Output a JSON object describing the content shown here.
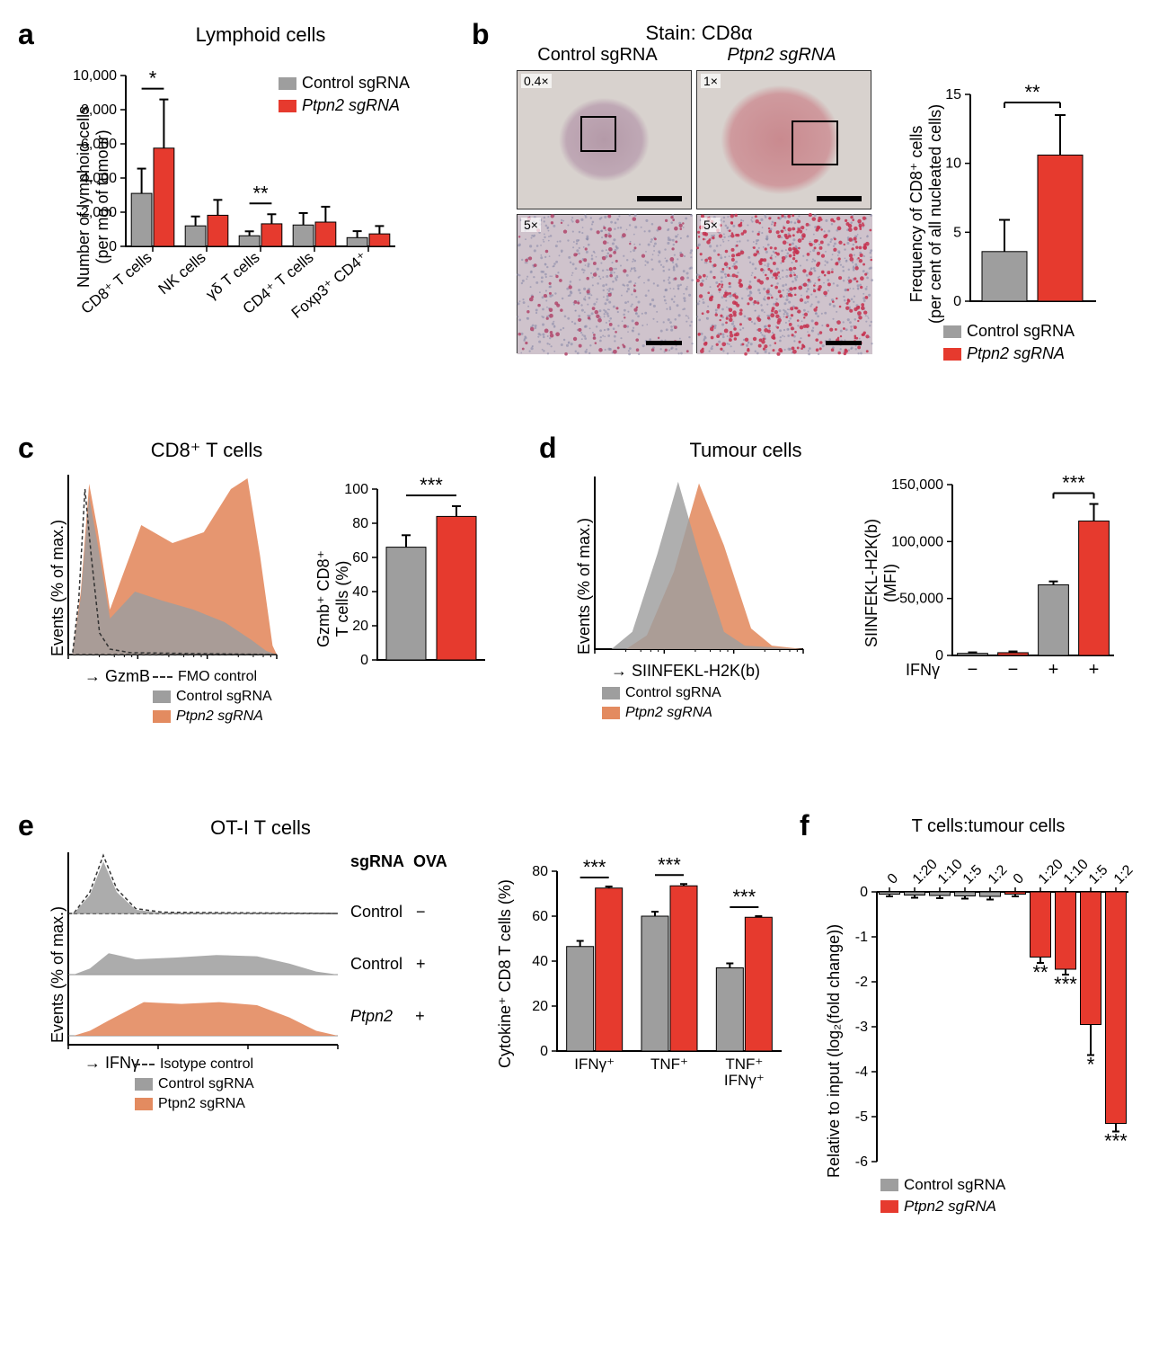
{
  "colors": {
    "control": "#9e9e9e",
    "ptpn2": "#e63a2e",
    "ptpn2_fill": "#e38b60",
    "fmo": "#555555",
    "axis": "#000000",
    "background": "#ffffff",
    "histo_bg": "#d8d2ce",
    "scale_bar": "#000000"
  },
  "panel_a": {
    "label": "a",
    "title": "Lymphoid cells",
    "y_axis": "Number of lymphoid cells\n(per mg of tumour)",
    "y_max": 10000,
    "y_tick_step": 2000,
    "categories": [
      "CD8⁺ T cells",
      "NK cells",
      "γδ T cells",
      "CD4⁺ T cells",
      "Foxp3⁺ CD4⁺"
    ],
    "control": {
      "values": [
        3100,
        1200,
        620,
        1250,
        510
      ],
      "errs": [
        1450,
        550,
        260,
        700,
        380
      ]
    },
    "ptpn2": {
      "values": [
        5750,
        1820,
        1320,
        1420,
        730
      ],
      "errs": [
        2850,
        900,
        560,
        900,
        460
      ]
    },
    "sig": {
      "0": "*",
      "2": "**"
    },
    "legend": [
      "Control sgRNA",
      "Ptpn2 sgRNA"
    ],
    "bar_width": 0.38
  },
  "panel_b": {
    "label": "b",
    "stain_title": "Stain: CD8α",
    "col_titles": [
      "Control sgRNA",
      "Ptpn2 sgRNA"
    ],
    "col_titles_style": [
      "normal",
      "italic"
    ],
    "mag_labels": [
      "0.4×",
      "1×",
      "5×",
      "5×"
    ],
    "y_axis": "Frequency of CD8⁺ cells\n(per cent of all nucleated cells)",
    "y_max": 15,
    "y_tick_step": 5,
    "control": {
      "value": 3.6,
      "err": 2.3
    },
    "ptpn2": {
      "value": 10.6,
      "err": 2.9
    },
    "sig": "**",
    "legend": [
      "Control sgRNA",
      "Ptpn2 sgRNA"
    ]
  },
  "panel_c": {
    "label": "c",
    "title": "CD8⁺ T cells",
    "flow_x": "GzmB",
    "flow_y": "Events (% of max.)",
    "flow_legend": [
      "FMO control",
      "Control sgRNA",
      "Ptpn2 sgRNA"
    ],
    "y_axis": "Gzmb⁺ CD8⁺\nT cells (%)",
    "y_max": 100,
    "y_tick_step": 20,
    "control": {
      "value": 66,
      "err": 7
    },
    "ptpn2": {
      "value": 84,
      "err": 6
    },
    "sig": "***"
  },
  "panel_d": {
    "label": "d",
    "title": "Tumour cells",
    "flow_x": "SIINFEKL-H2K(b)",
    "flow_y": "Events (% of max.)",
    "flow_legend": [
      "Control sgRNA",
      "Ptpn2 sgRNA"
    ],
    "bar_y": "SIINFEKL-H2K(b)\n(MFI)",
    "y_max": 150000,
    "y_tick_step": 50000,
    "categories": [
      "−",
      "−",
      "+",
      "+"
    ],
    "x_title": "IFNγ",
    "values": [
      1800,
      2400,
      62000,
      118000
    ],
    "errs": [
      900,
      1100,
      3000,
      15000
    ],
    "colors_idx": [
      "control",
      "ptpn2",
      "control",
      "ptpn2"
    ],
    "sig": "***",
    "sig_between": [
      2,
      3
    ]
  },
  "panel_e": {
    "label": "e",
    "title": "OT-I T cells",
    "flow_x": "IFNγ",
    "flow_y": "Events (% of max.)",
    "row_header": [
      "sgRNA",
      "OVA"
    ],
    "rows": [
      {
        "sgrna": "Control",
        "ova": "−"
      },
      {
        "sgrna": "Control",
        "ova": "+"
      },
      {
        "sgrna": "Ptpn2",
        "ova": "+"
      }
    ],
    "flow_legend": [
      "Isotype control",
      "Control sgRNA",
      "Ptpn2 sgRNA"
    ],
    "bar_y": "Cytokine⁺ CD8 T cells (%)",
    "y_max": 80,
    "y_tick_step": 20,
    "categories": [
      "IFNγ⁺",
      "TNF⁺",
      "TNF⁺\nIFNγ⁺"
    ],
    "control": {
      "values": [
        46.5,
        60,
        37
      ],
      "errs": [
        2.5,
        2,
        2
      ]
    },
    "ptpn2": {
      "values": [
        72.5,
        73.5,
        59.5
      ],
      "errs": [
        0.7,
        0.8,
        0.5
      ]
    },
    "sig": {
      "0": "***",
      "1": "***",
      "2": "***"
    }
  },
  "panel_f": {
    "label": "f",
    "title": "T cells:tumour cells",
    "y_axis": "Relative to input (log₂(fold change))",
    "y_min": -6,
    "y_max": 0,
    "y_tick_step": 1,
    "categories": [
      "0",
      "1:20",
      "1:10",
      "1:5",
      "1:2",
      "0",
      "1:20",
      "1:10",
      "1:5",
      "1:2"
    ],
    "colors_idx": [
      "control",
      "control",
      "control",
      "control",
      "control",
      "ptpn2",
      "ptpn2",
      "ptpn2",
      "ptpn2",
      "ptpn2"
    ],
    "values": [
      -0.05,
      -0.07,
      -0.08,
      -0.09,
      -0.1,
      -0.05,
      -1.45,
      -1.72,
      -2.95,
      -5.15
    ],
    "errs": [
      0.05,
      0.06,
      0.06,
      0.06,
      0.07,
      0.05,
      0.13,
      0.12,
      0.68,
      0.18
    ],
    "sig": {
      "6": "**",
      "7": "***",
      "8": "*",
      "9": "***"
    },
    "legend": [
      "Control sgRNA",
      "Ptpn2 sgRNA"
    ]
  }
}
